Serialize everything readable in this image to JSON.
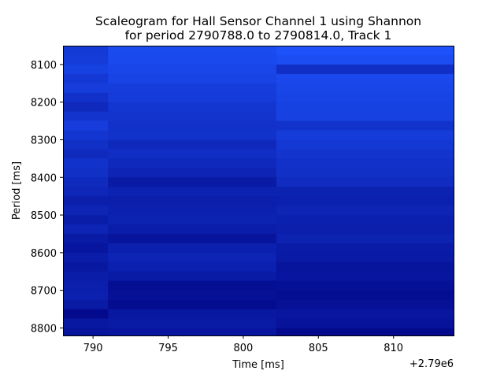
{
  "chart_data": {
    "type": "heatmap",
    "title_line1": "Scaleogram for Hall Sensor Channel 1 using Shannon",
    "title_line2": "for period 2790788.0 to 2790814.0, Track 1",
    "xlabel": "Time [ms]",
    "ylabel": "Period [ms]",
    "x_offset_label": "+2.79e6",
    "xlim": [
      788,
      814
    ],
    "ylim": [
      8820,
      8050
    ],
    "x_ticks": [
      790,
      795,
      800,
      805,
      810
    ],
    "x_tick_labels": [
      "790",
      "795",
      "800",
      "805",
      "810"
    ],
    "y_ticks": [
      8100,
      8200,
      8300,
      8400,
      8500,
      8600,
      8700,
      8800
    ],
    "y_tick_labels": [
      "8100",
      "8200",
      "8300",
      "8400",
      "8500",
      "8600",
      "8700",
      "8800"
    ],
    "time_segments": [
      {
        "start": 788.0,
        "end": 791.0
      },
      {
        "start": 791.0,
        "end": 802.2
      },
      {
        "start": 802.2,
        "end": 814.0
      }
    ],
    "period_edges": [
      8050,
      8075,
      8100,
      8125,
      8150,
      8175,
      8200,
      8225,
      8250,
      8275,
      8300,
      8325,
      8350,
      8375,
      8400,
      8425,
      8450,
      8475,
      8500,
      8525,
      8550,
      8575,
      8600,
      8625,
      8650,
      8675,
      8700,
      8725,
      8750,
      8775,
      8800,
      8825
    ],
    "colormap": {
      "low": "#00007d",
      "high": "#1e55ff"
    },
    "values": [
      [
        0.68,
        0.88,
        0.95
      ],
      [
        0.7,
        0.86,
        0.9
      ],
      [
        0.78,
        0.82,
        0.55
      ],
      [
        0.66,
        0.8,
        0.85
      ],
      [
        0.72,
        0.72,
        0.82
      ],
      [
        0.58,
        0.7,
        0.8
      ],
      [
        0.48,
        0.64,
        0.78
      ],
      [
        0.62,
        0.62,
        0.76
      ],
      [
        0.72,
        0.58,
        0.6
      ],
      [
        0.64,
        0.6,
        0.7
      ],
      [
        0.56,
        0.48,
        0.66
      ],
      [
        0.5,
        0.54,
        0.62
      ],
      [
        0.6,
        0.48,
        0.58
      ],
      [
        0.56,
        0.42,
        0.56
      ],
      [
        0.5,
        0.3,
        0.52
      ],
      [
        0.46,
        0.4,
        0.4
      ],
      [
        0.36,
        0.36,
        0.38
      ],
      [
        0.42,
        0.38,
        0.42
      ],
      [
        0.34,
        0.4,
        0.38
      ],
      [
        0.42,
        0.34,
        0.36
      ],
      [
        0.3,
        0.24,
        0.4
      ],
      [
        0.26,
        0.38,
        0.32
      ],
      [
        0.34,
        0.42,
        0.3
      ],
      [
        0.28,
        0.38,
        0.24
      ],
      [
        0.34,
        0.3,
        0.26
      ],
      [
        0.36,
        0.18,
        0.2
      ],
      [
        0.38,
        0.2,
        0.16
      ],
      [
        0.3,
        0.14,
        0.2
      ],
      [
        0.12,
        0.28,
        0.26
      ],
      [
        0.28,
        0.3,
        0.22
      ],
      [
        0.24,
        0.26,
        0.12
      ]
    ]
  }
}
